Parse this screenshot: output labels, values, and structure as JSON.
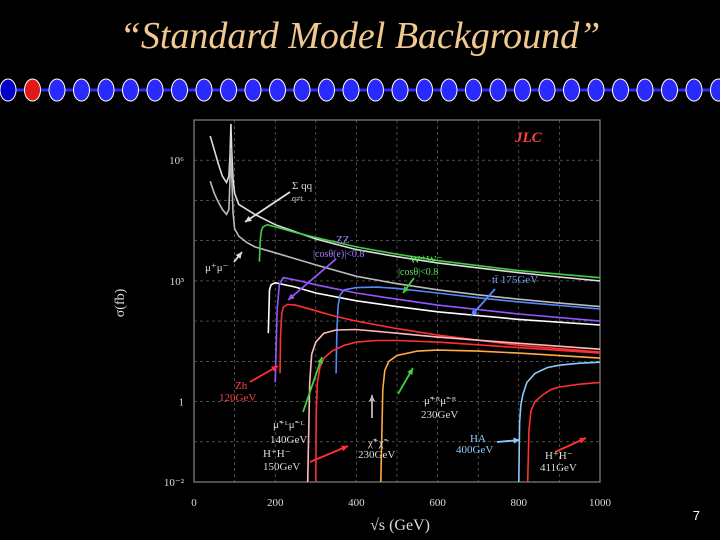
{
  "slide": {
    "title": "“Standard Model Background”",
    "page_number": "7",
    "colors": {
      "title": "#f0c890",
      "background": "#000000",
      "rail": "#2a2aff",
      "rail_bead_dark": "#0000c8",
      "rail_bead_red": "#e01818"
    }
  },
  "chart_data": {
    "type": "line",
    "title": "JLC",
    "xlabel": "√s (GeV)",
    "ylabel": "σ(fb)",
    "xlim": [
      0,
      1000
    ],
    "ylim_log10": [
      -2,
      7
    ],
    "y_scale": "log",
    "grid": true,
    "x_ticks": [
      "0",
      "200",
      "400",
      "600",
      "800",
      "1000"
    ],
    "y_ticks": [
      {
        "label": "10⁶",
        "value": 1000000
      },
      {
        "label": "10³",
        "value": 1000
      },
      {
        "label": "1",
        "value": 1
      },
      {
        "label": "10⁻²",
        "value": 0.01
      }
    ],
    "annotations": {
      "qq": "Σ qq",
      "qq_sub": "q≠t",
      "mumu": "μ⁺μ⁻",
      "zz1": "ZZ",
      "zz2": "|cosθ(e)|<0.8",
      "ww1": "W⁺W⁻",
      "ww2": "|cosθ|<0.8",
      "tt": "tt̄ 175GeV",
      "zh1": "Zh",
      "zh2": "120GeV",
      "smuL1": "μ̃⁺ᴸμ̃⁻ᴸ",
      "smuL2": "140GeV",
      "smuR1": "μ̃⁺ᴿμ̃⁻ᴿ",
      "smuR2": "230GeV",
      "chargino1": "χ̃⁺χ̃⁻",
      "chargino2": "230GeV",
      "hplus1": "H⁺H⁻",
      "hplus2": "150GeV",
      "ha1": "HA",
      "ha2": "400GeV",
      "hplus_b1": "H⁺H⁻",
      "hplus_b2": "411GeV"
    },
    "series": [
      {
        "label": "qq",
        "color": "#dddddd",
        "x": [
          40,
          50,
          60,
          70,
          80,
          86,
          89,
          91,
          93,
          96,
          100,
          110,
          130,
          150,
          200,
          300,
          400,
          500,
          600,
          700,
          800,
          900,
          1000
        ],
        "y": [
          4000000,
          1800000,
          800000,
          400000,
          280000,
          400000,
          1500000,
          8000000,
          1500000,
          350000,
          150000,
          80000,
          60000,
          45000,
          25000,
          11000,
          6000,
          4000,
          2800,
          2100,
          1600,
          1250,
          1000
        ]
      },
      {
        "label": "mumu",
        "color": "#bbbbbb",
        "x": [
          40,
          50,
          60,
          70,
          80,
          86,
          89,
          91,
          93,
          96,
          100,
          110,
          130,
          150,
          200,
          300,
          400,
          500,
          600,
          700,
          800,
          900,
          1000
        ],
        "y": [
          300000,
          150000,
          90000,
          60000,
          45000,
          60000,
          400000,
          2000000,
          400000,
          50000,
          20000,
          13000,
          9000,
          7000,
          5000,
          2500,
          1300,
          850,
          600,
          450,
          350,
          280,
          230
        ]
      },
      {
        "label": "ZZ",
        "color": "#ffffff",
        "x": [
          183,
          186,
          190,
          200,
          250,
          300,
          400,
          500,
          600,
          800,
          1000
        ],
        "y": [
          50,
          600,
          800,
          900,
          700,
          500,
          320,
          230,
          170,
          110,
          80
        ]
      },
      {
        "label": "WW",
        "color": "#40d040",
        "x": [
          161,
          163,
          166,
          170,
          180,
          200,
          250,
          300,
          400,
          500,
          600,
          800,
          1000
        ],
        "y": [
          3000,
          10000,
          18000,
          22000,
          25000,
          22000,
          16000,
          12000,
          7000,
          4600,
          3200,
          1800,
          1200
        ]
      },
      {
        "label": "tt",
        "color": "#5588ff",
        "x": [
          350,
          352,
          355,
          360,
          370,
          400,
          450,
          500,
          600,
          700,
          800,
          1000
        ],
        "y": [
          5,
          60,
          250,
          450,
          600,
          680,
          700,
          650,
          500,
          380,
          300,
          200
        ]
      },
      {
        "label": "purple",
        "color": "#9955ff",
        "x": [
          200,
          205,
          210,
          220,
          240,
          260,
          300,
          400,
          500,
          600,
          800,
          1000
        ],
        "y": [
          3,
          200,
          800,
          1200,
          1100,
          1000,
          800,
          500,
          350,
          250,
          150,
          100
        ]
      },
      {
        "label": "Zh",
        "color": "#ff3030",
        "x": [
          212,
          213,
          216,
          220,
          230,
          250,
          270,
          300,
          350,
          400,
          500,
          600,
          800,
          1000
        ],
        "y": [
          5,
          40,
          150,
          220,
          260,
          250,
          220,
          180,
          130,
          100,
          65,
          45,
          25,
          17
        ]
      },
      {
        "label": "smuL",
        "color": "#ffbbbb",
        "x": [
          280,
          285,
          290,
          300,
          320,
          350,
          400,
          500,
          600,
          800,
          1000
        ],
        "y": [
          0.01,
          3,
          15,
          30,
          50,
          60,
          62,
          50,
          40,
          28,
          20
        ]
      },
      {
        "label": "smuR",
        "color": "#ffaa44",
        "x": [
          460,
          465,
          470,
          480,
          500,
          550,
          600,
          700,
          800,
          1000
        ],
        "y": [
          0.01,
          2,
          6,
          10,
          14,
          18,
          19,
          18,
          16,
          12
        ]
      },
      {
        "label": "Hplus150",
        "color": "#ff3030",
        "x": [
          300,
          301,
          304,
          310,
          320,
          340,
          370,
          400,
          450,
          500,
          600,
          800,
          1000
        ],
        "y": [
          0.01,
          0.5,
          3,
          7,
          12,
          18,
          25,
          30,
          33,
          33,
          30,
          22,
          16
        ]
      },
      {
        "label": "HA400",
        "color": "#88ccff",
        "x": [
          800,
          802,
          805,
          810,
          820,
          840,
          870,
          900,
          950,
          1000
        ],
        "y": [
          0.01,
          0.3,
          0.8,
          1.5,
          3,
          5,
          7,
          8,
          9,
          9.5
        ]
      },
      {
        "label": "Hplus411",
        "color": "#ff3030",
        "x": [
          822,
          825,
          830,
          840,
          860,
          880,
          900,
          950,
          1000
        ],
        "y": [
          0.01,
          0.2,
          0.6,
          1,
          1.5,
          2,
          2.3,
          2.7,
          3
        ]
      }
    ]
  }
}
